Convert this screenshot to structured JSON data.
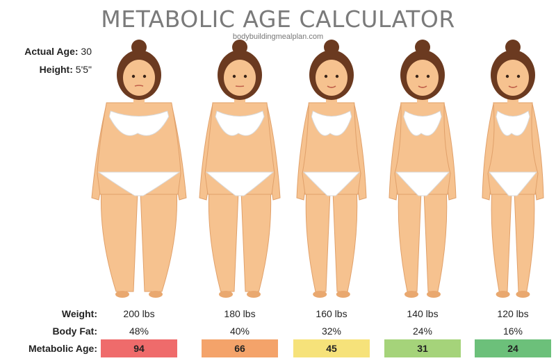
{
  "header": {
    "title": "METABOLIC AGE CALCULATOR",
    "source": "bodybuildingmealplan.com"
  },
  "subject": {
    "age_label": "Actual Age:",
    "age_value": "30",
    "height_label": "Height:",
    "height_value": "5'5\""
  },
  "rows": {
    "weight_label": "Weight:",
    "body_fat_label": "Body Fat:",
    "metabolic_age_label": "Metabolic Age:"
  },
  "figures": [
    {
      "weight": "200 lbs",
      "body_fat": "48%",
      "metabolic_age": "94",
      "badge_color": "#ef6b6b"
    },
    {
      "weight": "180 lbs",
      "body_fat": "40%",
      "metabolic_age": "66",
      "badge_color": "#f4a36a"
    },
    {
      "weight": "160 lbs",
      "body_fat": "32%",
      "metabolic_age": "45",
      "badge_color": "#f6e27a"
    },
    {
      "weight": "140 lbs",
      "body_fat": "24%",
      "metabolic_age": "31",
      "badge_color": "#a5d37a"
    },
    {
      "weight": "120 lbs",
      "body_fat": "16%",
      "metabolic_age": "24",
      "badge_color": "#6cc07a"
    }
  ],
  "colors": {
    "skin": "#f6c28f",
    "skin_shadow": "#e9a86f",
    "hair": "#6b3a20",
    "underwear": "#ffffff",
    "outline": "#e0a06a"
  }
}
